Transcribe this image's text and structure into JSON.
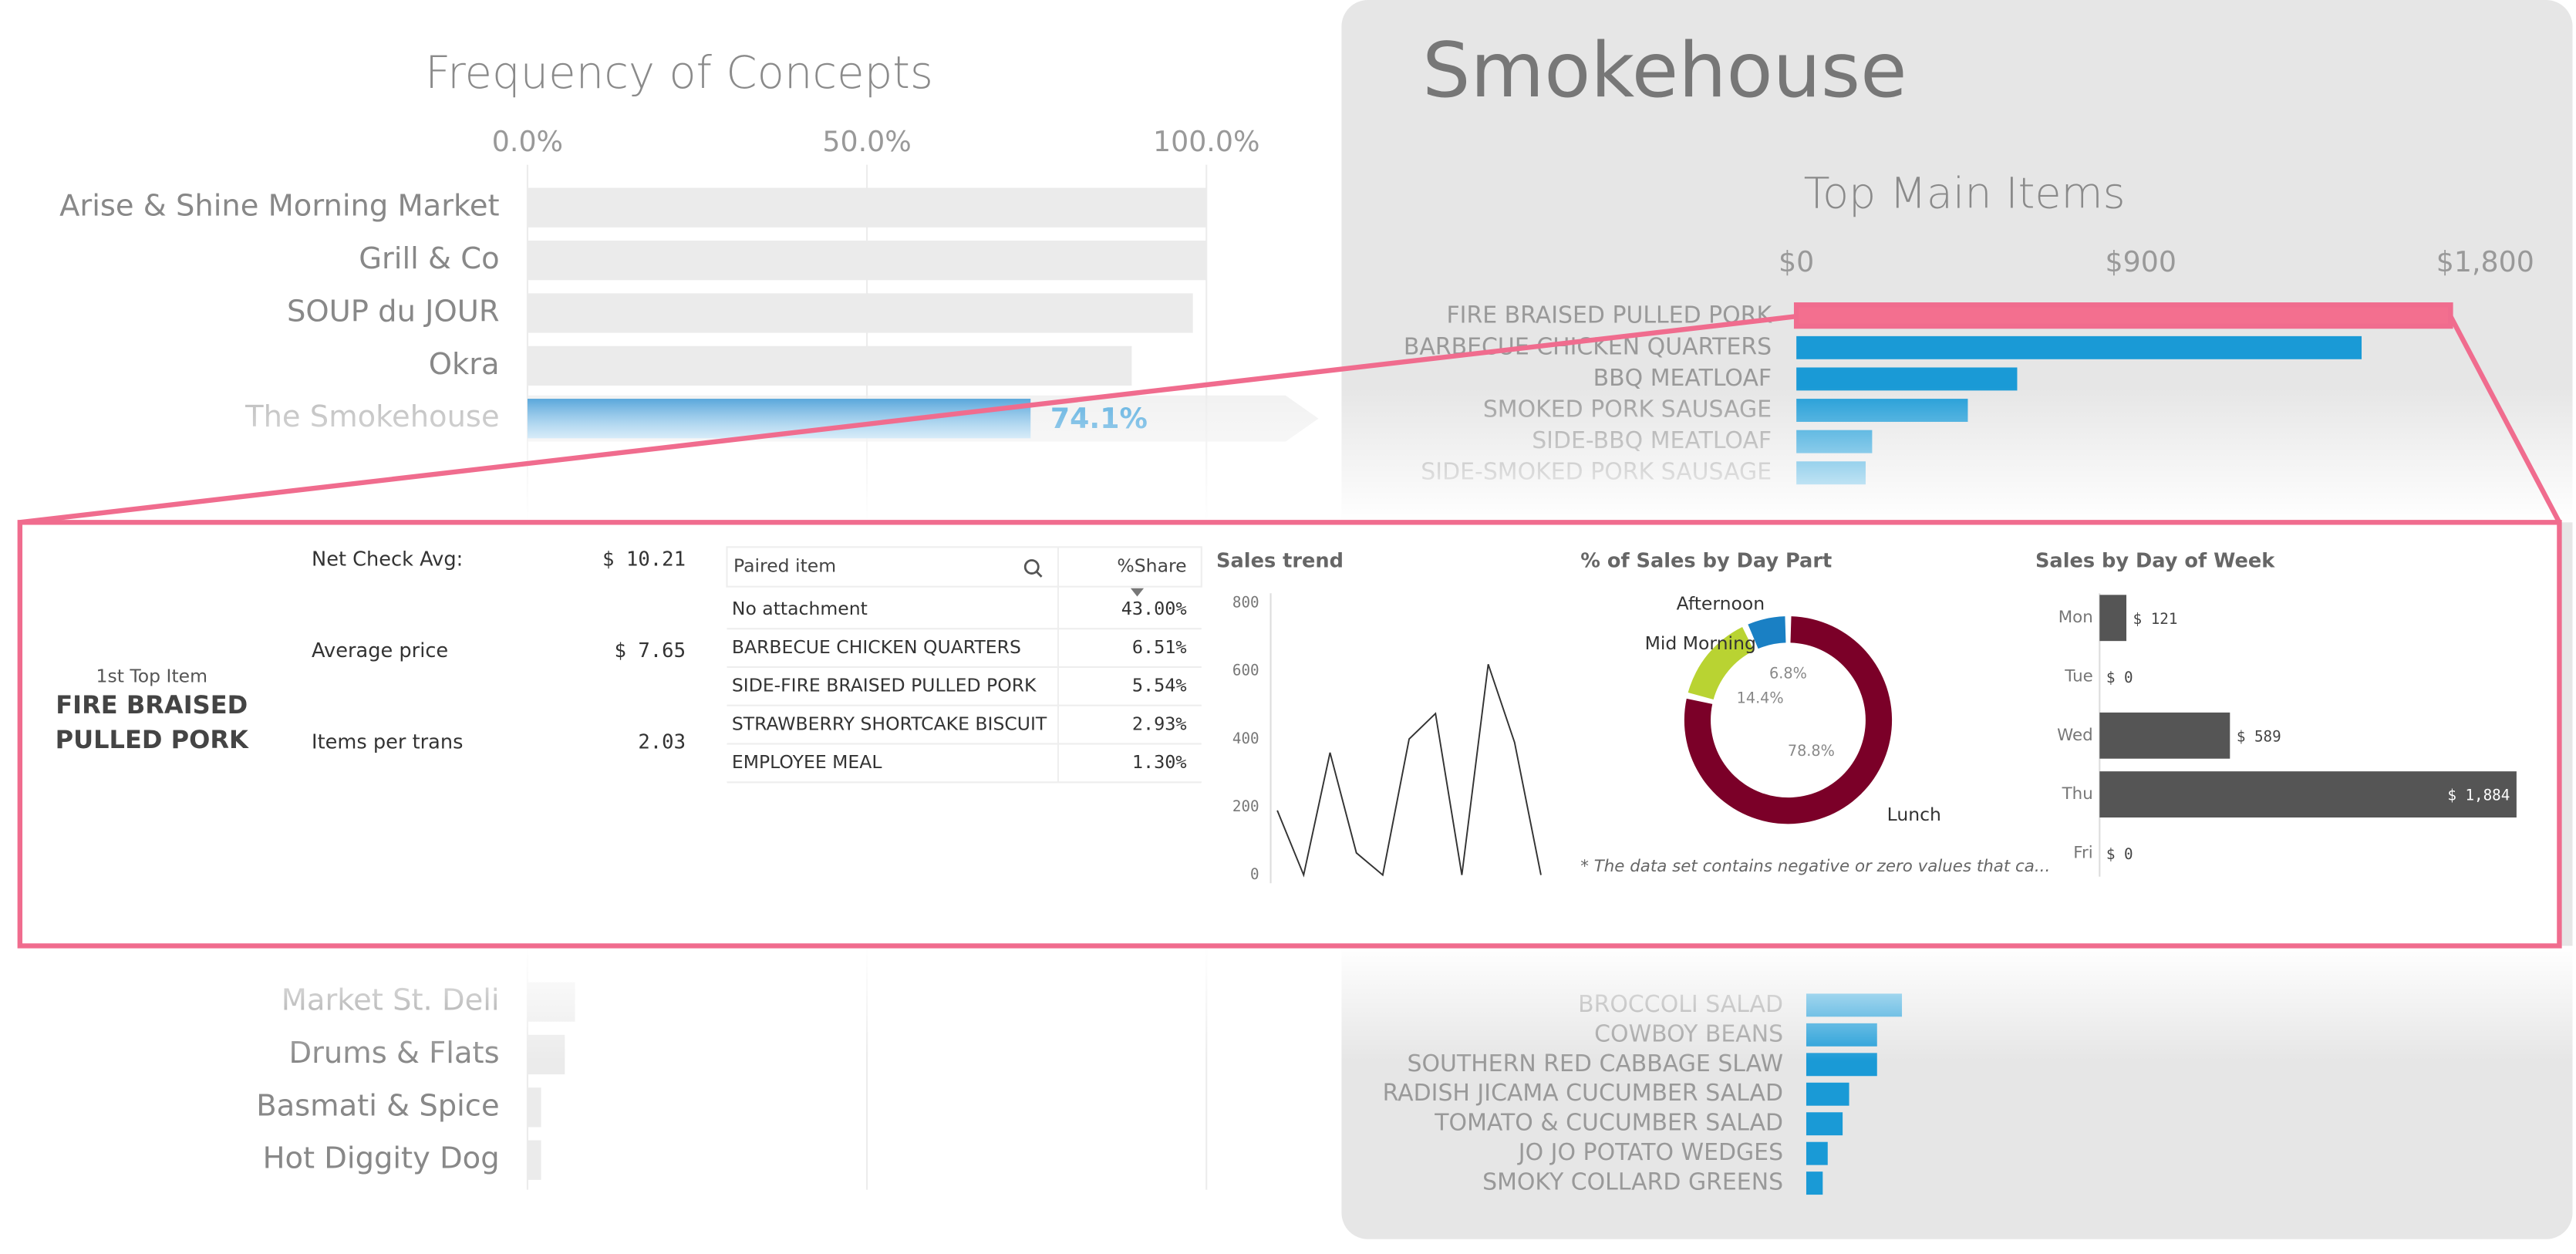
{
  "frequency_chart": {
    "type": "bar",
    "title": "Frequency of Concepts",
    "categories": [
      "Arise & Shine Morning Market",
      "Grill & Co",
      "SOUP du JOUR",
      "Okra",
      "The Smokehouse",
      "Market St. Deli",
      "Drums & Flats",
      "Basmati & Spice",
      "Hot Diggity Dog"
    ],
    "values": [
      100,
      100,
      98,
      89,
      74.1,
      7,
      5.5,
      2,
      2
    ],
    "value_labels": [
      null,
      null,
      null,
      null,
      "74.1%",
      null,
      null,
      null,
      null
    ],
    "xlim": [
      0,
      100
    ],
    "xticks": [
      {
        "value": 0,
        "label": "0.0%"
      },
      {
        "value": 50,
        "label": "50.0%"
      },
      {
        "value": 100,
        "label": "100.0%"
      }
    ],
    "color": "#ebebeb",
    "highlight_color": "#5aaedf"
  },
  "detail": {
    "title": "Smokehouse",
    "top_items": {
      "type": "bar",
      "title": "Top Main Items",
      "categories": [
        "FIRE BRAISED PULLED PORK",
        "BARBECUE CHICKEN QUARTERS",
        "BBQ MEATLOAF",
        "SMOKED PORK SAUSAGE",
        "SIDE-BBQ MEATLOAF",
        "SIDE-SMOKED PORK SAUSAGE",
        "BROCCOLI SALAD",
        "COWBOY BEANS",
        "SOUTHERN RED CABBAGE SLAW",
        "RADISH JICAMA CUCUMBER SALAD",
        "TOMATO & CUCUMBER SALAD",
        "JO JO POTATO WEDGES",
        "SMOKY COLLARD GREENS"
      ],
      "values": [
        1710,
        1477,
        577,
        448,
        198,
        181,
        250,
        185,
        185,
        112,
        95,
        56,
        43
      ],
      "xlim": [
        0,
        1800
      ],
      "xticks": [
        {
          "value": 0,
          "label": "$0"
        },
        {
          "value": 900,
          "label": "$900"
        },
        {
          "value": 1800,
          "label": "$1,800"
        }
      ],
      "color": "#1a9ad6",
      "highlight_color": "#f36f8f"
    }
  },
  "panel": {
    "top_item": {
      "caption": "1st Top Item",
      "name": "FIRE BRAISED PULLED PORK"
    },
    "kpis": [
      {
        "label": "Net Check Avg:",
        "value": "$ 10.21"
      },
      {
        "label": "Average price",
        "value": "$ 7.65"
      },
      {
        "label": "Items per trans",
        "value": "2.03"
      }
    ],
    "paired_table": {
      "columns": [
        "Paired item",
        "%Share"
      ],
      "rows": [
        [
          "No attachment",
          "43.00%"
        ],
        [
          "BARBECUE CHICKEN QUARTERS",
          "6.51%"
        ],
        [
          "SIDE-FIRE BRAISED PULLED PORK",
          "5.54%"
        ],
        [
          "STRAWBERRY SHORTCAKE BISCUIT",
          "2.93%"
        ],
        [
          "EMPLOYEE MEAL",
          "1.30%"
        ]
      ]
    },
    "sales_trend": {
      "type": "line",
      "title": "Sales trend",
      "values": [
        190,
        0,
        360,
        65,
        0,
        400,
        475,
        0,
        620,
        390,
        0
      ],
      "ylim": [
        0,
        800
      ],
      "yticks": [
        0,
        200,
        400,
        600,
        800
      ],
      "color": "#333333"
    },
    "day_part": {
      "type": "donut",
      "title": "% of Sales by Day Part",
      "categories": [
        "Lunch",
        "Mid Morning",
        "Afternoon"
      ],
      "values": [
        78.8,
        14.4,
        6.8
      ],
      "value_labels": [
        "78.8%",
        "14.4%",
        "6.8%"
      ],
      "colors": [
        "#7b0028",
        "#b9d332",
        "#1a80c4"
      ],
      "note": "* The data set contains negative or zero values that ca..."
    },
    "day_of_week": {
      "type": "bar",
      "title": "Sales by Day of Week",
      "categories": [
        "Mon",
        "Tue",
        "Wed",
        "Thu",
        "Fri"
      ],
      "values": [
        121,
        0,
        589,
        1884,
        0
      ],
      "value_labels": [
        "$ 121",
        "$ 0",
        "$ 589",
        "$ 1,884",
        "$ 0"
      ],
      "color": "#555555"
    }
  }
}
